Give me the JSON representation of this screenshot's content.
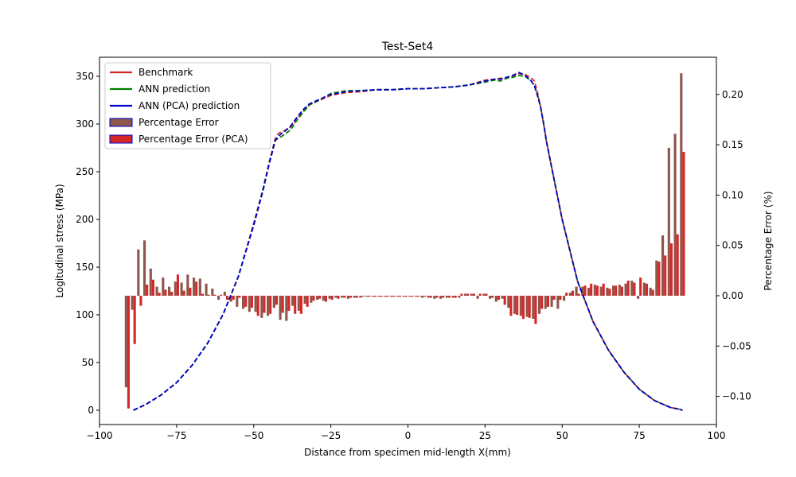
{
  "chart_data": {
    "type": "line",
    "title": "Test-Set4",
    "xlabel": "Distance from specimen mid-length X(mm)",
    "ylabel": "Logitudinal stress (MPa)",
    "ylabel_right": "Percentage Error (%)",
    "xlim": [
      -100,
      100
    ],
    "ylim": [
      -15,
      370
    ],
    "ylim_right": [
      -0.128,
      0.237
    ],
    "x_ticks": [
      -100,
      -75,
      -50,
      -25,
      0,
      25,
      50,
      75,
      100
    ],
    "y_ticks": [
      0,
      50,
      100,
      150,
      200,
      250,
      300,
      350
    ],
    "y_ticks_right": [
      -0.1,
      -0.05,
      0.0,
      0.05,
      0.1,
      0.15,
      0.2
    ],
    "x_tick_labels": [
      "−100",
      "−75",
      "−50",
      "−25",
      "0",
      "25",
      "50",
      "75",
      "100"
    ],
    "y_tick_labels": [
      "0",
      "50",
      "100",
      "150",
      "200",
      "250",
      "300",
      "350"
    ],
    "y_tick_labels_right": [
      "−0.10",
      "−0.05",
      "0.00",
      "0.05",
      "0.10",
      "0.15",
      "0.20"
    ],
    "grid": false,
    "legend_position": "upper-left",
    "legend": [
      {
        "label": "Benchmark",
        "kind": "line",
        "color": "#d62728"
      },
      {
        "label": "ANN prediction",
        "kind": "line",
        "color": "#008000"
      },
      {
        "label": "ANN (PCA) prediction",
        "kind": "line",
        "color": "#0000cd"
      },
      {
        "label": "Percentage Error",
        "kind": "patch",
        "color": "#8c564b",
        "edge": "#0000cd"
      },
      {
        "label": "Percentage Error (PCA)",
        "kind": "patch",
        "color": "#d62728",
        "edge": "#0000cd"
      }
    ],
    "series": [
      {
        "name": "Benchmark",
        "axis": "left",
        "color": "#d62728",
        "dash": true,
        "x": [
          -89,
          -85,
          -80,
          -75,
          -70,
          -65,
          -60,
          -55,
          -50,
          -47,
          -45,
          -43,
          -42,
          -41,
          -40,
          -38,
          -36,
          -34,
          -32,
          -30,
          -25,
          -20,
          -15,
          -10,
          -5,
          0,
          5,
          10,
          15,
          20,
          25,
          28,
          30,
          32,
          34,
          36,
          38,
          40,
          41,
          42,
          43,
          44,
          45,
          48,
          50,
          55,
          60,
          65,
          70,
          75,
          80,
          85,
          88,
          89
        ],
        "y": [
          0,
          6,
          16,
          29,
          47,
          70,
          100,
          140,
          196,
          232,
          260,
          285,
          290,
          292,
          293,
          297,
          305,
          313,
          320,
          323,
          330,
          333,
          334,
          336,
          336,
          337,
          337,
          338,
          339,
          341,
          346,
          347,
          348,
          348,
          350,
          353,
          352,
          348,
          345,
          333,
          318,
          300,
          280,
          232,
          200,
          135,
          93,
          63,
          40,
          22,
          10,
          3,
          1,
          0
        ]
      },
      {
        "name": "ANN prediction",
        "axis": "left",
        "color": "#008000",
        "dash": true,
        "x": [
          -89,
          -85,
          -80,
          -75,
          -70,
          -65,
          -60,
          -55,
          -50,
          -47,
          -45,
          -43,
          -42,
          -41,
          -40,
          -38,
          -36,
          -34,
          -32,
          -30,
          -25,
          -20,
          -15,
          -10,
          -5,
          0,
          5,
          10,
          15,
          20,
          25,
          28,
          30,
          32,
          34,
          36,
          38,
          40,
          41,
          42,
          43,
          44,
          45,
          48,
          50,
          55,
          60,
          65,
          70,
          75,
          80,
          85,
          88,
          89
        ],
        "y": [
          0,
          6,
          16,
          29,
          47,
          70,
          100,
          140,
          194,
          232,
          258,
          283,
          285,
          287,
          289,
          294,
          304,
          312,
          320,
          323,
          332,
          335,
          335,
          336,
          336,
          337,
          337,
          338,
          339,
          341,
          344,
          346,
          345,
          348,
          349,
          351,
          350,
          345,
          340,
          330,
          318,
          300,
          280,
          232,
          200,
          135,
          93,
          63,
          40,
          22,
          10,
          3,
          1,
          0
        ]
      },
      {
        "name": "ANN (PCA) prediction",
        "axis": "left",
        "color": "#0000cd",
        "dash": true,
        "x": [
          -89,
          -85,
          -80,
          -75,
          -70,
          -65,
          -60,
          -55,
          -50,
          -47,
          -45,
          -43,
          -42,
          -41,
          -40,
          -38,
          -36,
          -34,
          -32,
          -30,
          -25,
          -20,
          -15,
          -10,
          -5,
          0,
          5,
          10,
          15,
          20,
          25,
          28,
          30,
          32,
          34,
          36,
          38,
          40,
          41,
          42,
          43,
          44,
          45,
          48,
          50,
          55,
          60,
          65,
          70,
          75,
          80,
          85,
          88,
          89
        ],
        "y": [
          0,
          6,
          16,
          29,
          47,
          70,
          100,
          140,
          194,
          230,
          258,
          283,
          287,
          290,
          292,
          298,
          307,
          315,
          321,
          324,
          331,
          334,
          335,
          336,
          336,
          337,
          337,
          338,
          339,
          341,
          345,
          347,
          347,
          349,
          351,
          354,
          351,
          345,
          340,
          330,
          318,
          300,
          280,
          232,
          200,
          135,
          93,
          63,
          40,
          22,
          10,
          3,
          1,
          0
        ]
      }
    ],
    "bars": [
      {
        "name": "Percentage Error",
        "axis": "right",
        "color": "#8c564b",
        "offset": -0.4,
        "width": 0.8,
        "x": [
          -91,
          -89,
          -87,
          -85,
          -83,
          -81,
          -79,
          -77,
          -75,
          -73,
          -71,
          -69,
          -67,
          -65,
          -63,
          -61,
          -59,
          -57,
          -55,
          -53,
          -51,
          -49,
          -47,
          -45,
          -43,
          -41,
          -39,
          -37,
          -35,
          -33,
          -31,
          -29,
          -27,
          -25,
          -23,
          -21,
          -19,
          -17,
          -15,
          -13,
          -11,
          -9,
          -7,
          -5,
          -3,
          -1,
          1,
          3,
          5,
          7,
          9,
          11,
          13,
          15,
          17,
          19,
          21,
          23,
          25,
          27,
          29,
          31,
          33,
          35,
          37,
          39,
          41,
          43,
          45,
          47,
          49,
          51,
          53,
          55,
          57,
          59,
          61,
          63,
          65,
          67,
          69,
          71,
          73,
          75,
          77,
          79,
          81,
          83,
          85,
          87,
          89
        ],
        "y": [
          -0.091,
          -0.014,
          0.046,
          0.055,
          0.027,
          0.009,
          0.018,
          0.009,
          0.014,
          0.013,
          0.021,
          0.018,
          0.017,
          0.012,
          0.007,
          -0.004,
          0.004,
          -0.006,
          -0.011,
          -0.013,
          -0.016,
          -0.016,
          -0.022,
          -0.02,
          -0.012,
          -0.024,
          -0.025,
          -0.01,
          -0.015,
          -0.008,
          -0.007,
          -0.004,
          -0.005,
          -0.003,
          -0.002,
          -0.002,
          -0.003,
          -0.002,
          -0.002,
          -0.001,
          -0.001,
          -0.001,
          -0.001,
          -0.001,
          -0.001,
          -0.001,
          -0.001,
          -0.001,
          -0.002,
          -0.002,
          -0.003,
          -0.003,
          -0.002,
          -0.002,
          -0.002,
          0.002,
          0.002,
          -0.003,
          0.002,
          -0.003,
          -0.006,
          -0.003,
          -0.012,
          -0.018,
          -0.02,
          -0.021,
          -0.023,
          -0.018,
          -0.013,
          -0.011,
          -0.013,
          -0.005,
          0.003,
          0.009,
          0.009,
          0.008,
          0.011,
          0.009,
          0.008,
          0.01,
          0.011,
          0.012,
          0.015,
          -0.003,
          0.013,
          0.008,
          0.035,
          0.06,
          0.147,
          0.161,
          0.221
        ]
      },
      {
        "name": "Percentage Error (PCA)",
        "axis": "right",
        "color": "#d62728",
        "offset": 0.4,
        "width": 0.8,
        "x": [
          -91,
          -89,
          -87,
          -85,
          -83,
          -81,
          -79,
          -77,
          -75,
          -73,
          -71,
          -69,
          -67,
          -65,
          -63,
          -61,
          -59,
          -57,
          -55,
          -53,
          -51,
          -49,
          -47,
          -45,
          -43,
          -41,
          -39,
          -37,
          -35,
          -33,
          -31,
          -29,
          -27,
          -25,
          -23,
          -21,
          -19,
          -17,
          -15,
          -13,
          -11,
          -9,
          -7,
          -5,
          -3,
          -1,
          1,
          3,
          5,
          7,
          9,
          11,
          13,
          15,
          17,
          19,
          21,
          23,
          25,
          27,
          29,
          31,
          33,
          35,
          37,
          39,
          41,
          43,
          45,
          47,
          49,
          51,
          53,
          55,
          57,
          59,
          61,
          63,
          65,
          67,
          69,
          71,
          73,
          75,
          77,
          79,
          81,
          83,
          85,
          87,
          89
        ],
        "y": [
          -0.112,
          -0.048,
          -0.01,
          0.011,
          0.016,
          0.003,
          0.006,
          0.004,
          0.021,
          0.005,
          0.008,
          0.014,
          0.002,
          0.001,
          0.001,
          0.001,
          -0.004,
          -0.004,
          -0.002,
          -0.011,
          -0.012,
          -0.02,
          -0.017,
          -0.018,
          -0.009,
          -0.017,
          -0.015,
          -0.018,
          -0.018,
          -0.011,
          -0.005,
          -0.003,
          -0.006,
          -0.004,
          -0.003,
          -0.002,
          -0.002,
          -0.002,
          -0.001,
          -0.001,
          -0.001,
          -0.001,
          -0.001,
          -0.001,
          -0.001,
          -0.001,
          -0.001,
          -0.001,
          -0.001,
          -0.002,
          -0.002,
          -0.002,
          -0.002,
          -0.002,
          0.002,
          0.002,
          0.002,
          0.002,
          0.002,
          -0.002,
          -0.004,
          -0.009,
          -0.02,
          -0.019,
          -0.023,
          -0.022,
          -0.028,
          -0.013,
          -0.011,
          -0.004,
          -0.004,
          0.003,
          0.005,
          0.002,
          0.01,
          0.012,
          0.01,
          0.012,
          0.007,
          0.01,
          0.009,
          0.015,
          0.013,
          0.018,
          0.012,
          0.006,
          0.034,
          0.04,
          0.052,
          0.061,
          0.143
        ]
      }
    ]
  }
}
